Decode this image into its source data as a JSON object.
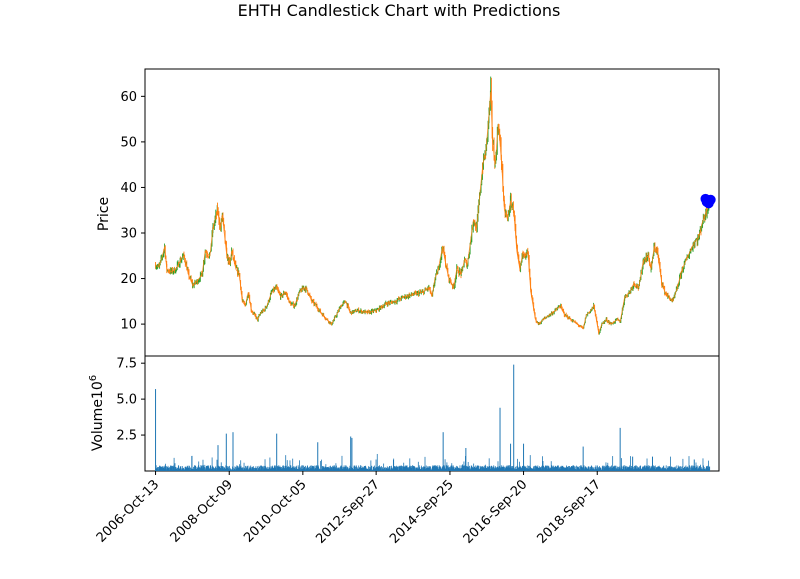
{
  "chart_data": {
    "type": "candlestick",
    "title": "EHTH Candlestick Chart with Predictions",
    "price_panel": {
      "ylabel": "Price",
      "ylim": [
        3,
        66
      ],
      "yticks": [
        10,
        20,
        30,
        40,
        50,
        60
      ],
      "colors": {
        "up": "#2ca02c",
        "down": "#ff7f0e",
        "prediction": "#0000ff"
      },
      "series_close": [
        [
          "2006-10-13",
          23
        ],
        [
          "2006-11-15",
          22.5
        ],
        [
          "2006-12-20",
          25
        ],
        [
          "2007-01-10",
          27
        ],
        [
          "2007-02-01",
          22
        ],
        [
          "2007-03-15",
          21.5
        ],
        [
          "2007-05-01",
          22
        ],
        [
          "2007-06-15",
          24
        ],
        [
          "2007-07-20",
          25
        ],
        [
          "2007-09-01",
          21
        ],
        [
          "2007-10-15",
          18.5
        ],
        [
          "2007-12-01",
          19.5
        ],
        [
          "2008-01-15",
          21
        ],
        [
          "2008-02-15",
          26
        ],
        [
          "2008-04-01",
          25
        ],
        [
          "2008-05-01",
          31
        ],
        [
          "2008-06-15",
          35
        ],
        [
          "2008-07-15",
          31
        ],
        [
          "2008-08-01",
          34
        ],
        [
          "2008-09-15",
          25
        ],
        [
          "2008-10-15",
          23
        ],
        [
          "2008-11-01",
          26
        ],
        [
          "2008-12-15",
          22
        ],
        [
          "2009-01-15",
          21
        ],
        [
          "2009-02-15",
          15
        ],
        [
          "2009-03-15",
          14
        ],
        [
          "2009-04-15",
          17
        ],
        [
          "2009-05-15",
          13
        ],
        [
          "2009-06-15",
          12
        ],
        [
          "2009-07-15",
          11
        ],
        [
          "2009-08-15",
          12.5
        ],
        [
          "2009-09-15",
          13
        ],
        [
          "2009-10-15",
          14
        ],
        [
          "2009-12-01",
          17
        ],
        [
          "2010-01-15",
          18
        ],
        [
          "2010-03-01",
          16
        ],
        [
          "2010-04-15",
          17
        ],
        [
          "2010-06-01",
          14.5
        ],
        [
          "2010-07-15",
          14
        ],
        [
          "2010-09-01",
          17
        ],
        [
          "2010-10-15",
          18
        ],
        [
          "2010-11-15",
          17.5
        ],
        [
          "2011-01-01",
          15
        ],
        [
          "2011-02-15",
          14
        ],
        [
          "2011-04-01",
          12.5
        ],
        [
          "2011-06-01",
          11
        ],
        [
          "2011-07-15",
          10
        ],
        [
          "2011-09-01",
          12
        ],
        [
          "2011-10-15",
          14
        ],
        [
          "2011-12-01",
          15
        ],
        [
          "2012-01-15",
          12.5
        ],
        [
          "2012-04-01",
          13
        ],
        [
          "2012-07-01",
          12.5
        ],
        [
          "2012-10-01",
          13
        ],
        [
          "2013-01-01",
          14.5
        ],
        [
          "2013-04-01",
          15
        ],
        [
          "2013-07-01",
          16
        ],
        [
          "2013-10-01",
          16.5
        ],
        [
          "2014-01-01",
          17
        ],
        [
          "2014-03-01",
          18
        ],
        [
          "2014-04-01",
          16
        ],
        [
          "2014-05-01",
          20
        ],
        [
          "2014-06-01",
          22
        ],
        [
          "2014-07-15",
          27
        ],
        [
          "2014-08-15",
          23
        ],
        [
          "2014-09-15",
          20
        ],
        [
          "2014-11-01",
          18
        ],
        [
          "2014-12-01",
          22
        ],
        [
          "2015-01-15",
          21
        ],
        [
          "2015-02-15",
          24
        ],
        [
          "2015-03-15",
          23
        ],
        [
          "2015-04-15",
          28
        ],
        [
          "2015-05-15",
          33
        ],
        [
          "2015-06-15",
          31
        ],
        [
          "2015-07-15",
          38
        ],
        [
          "2015-08-15",
          45
        ],
        [
          "2015-09-15",
          48
        ],
        [
          "2015-10-15",
          56
        ],
        [
          "2015-11-01",
          61
        ],
        [
          "2015-11-20",
          50
        ],
        [
          "2015-12-15",
          45
        ],
        [
          "2016-01-15",
          54
        ],
        [
          "2016-02-15",
          46
        ],
        [
          "2016-03-15",
          35
        ],
        [
          "2016-04-15",
          33
        ],
        [
          "2016-05-15",
          37
        ],
        [
          "2016-06-15",
          35
        ],
        [
          "2016-07-15",
          26
        ],
        [
          "2016-08-15",
          22
        ],
        [
          "2016-09-15",
          26
        ],
        [
          "2016-10-15",
          25
        ],
        [
          "2016-11-01",
          26
        ],
        [
          "2016-12-01",
          17
        ],
        [
          "2017-01-15",
          11
        ],
        [
          "2017-02-15",
          10
        ],
        [
          "2017-04-01",
          11
        ],
        [
          "2017-06-01",
          12
        ],
        [
          "2017-08-01",
          13
        ],
        [
          "2017-09-15",
          14
        ],
        [
          "2017-11-01",
          12
        ],
        [
          "2018-01-01",
          11
        ],
        [
          "2018-03-01",
          10
        ],
        [
          "2018-05-01",
          9
        ],
        [
          "2018-06-01",
          12
        ],
        [
          "2018-07-15",
          13
        ],
        [
          "2018-08-15",
          14
        ],
        [
          "2018-10-01",
          8
        ],
        [
          "2018-11-01",
          10
        ],
        [
          "2018-12-15",
          11
        ],
        [
          "2019-02-01",
          10
        ],
        [
          "2019-04-01",
          11
        ],
        [
          "2019-05-01",
          10.5
        ],
        [
          "2019-06-15",
          16
        ],
        [
          "2019-08-01",
          17
        ],
        [
          "2019-09-15",
          19
        ],
        [
          "2019-11-01",
          18
        ],
        [
          "2019-12-15",
          24
        ],
        [
          "2020-02-01",
          25
        ],
        [
          "2020-03-01",
          22
        ],
        [
          "2020-04-01",
          27
        ],
        [
          "2020-05-01",
          26
        ],
        [
          "2020-06-15",
          19
        ],
        [
          "2020-07-15",
          17
        ],
        [
          "2020-08-15",
          16
        ],
        [
          "2020-10-01",
          15
        ],
        [
          "2020-11-15",
          18
        ],
        [
          "2021-01-01",
          22
        ],
        [
          "2021-03-01",
          25
        ],
        [
          "2021-05-01",
          28
        ],
        [
          "2021-06-15",
          29
        ],
        [
          "2021-07-15",
          32
        ],
        [
          "2021-08-15",
          34
        ],
        [
          "2021-09-15",
          36
        ],
        [
          "2021-10-01",
          37
        ]
      ],
      "predictions": [
        [
          "2021-08-20",
          37.5
        ],
        [
          "2021-09-01",
          36.8
        ],
        [
          "2021-09-10",
          37.2
        ],
        [
          "2021-09-20",
          36.5
        ],
        [
          "2021-10-01",
          37.0
        ],
        [
          "2021-10-10",
          37.3
        ]
      ]
    },
    "volume_panel": {
      "ylabel": "Volume",
      "scale_label": "10",
      "scale_exp": "6",
      "ylim": [
        0,
        8
      ],
      "yticks": [
        "2.5",
        "5.0",
        "7.5"
      ],
      "ytick_values": [
        2.5,
        5.0,
        7.5
      ],
      "color": "#1f77b4",
      "spikes": [
        [
          "2006-10-13",
          5.7
        ],
        [
          "2008-06-20",
          1.8
        ],
        [
          "2008-09-10",
          2.6
        ],
        [
          "2008-11-15",
          2.7
        ],
        [
          "2010-01-20",
          2.6
        ],
        [
          "2011-03-01",
          2.0
        ],
        [
          "2012-01-20",
          2.4
        ],
        [
          "2012-02-01",
          2.3
        ],
        [
          "2014-07-20",
          2.7
        ],
        [
          "2015-03-01",
          1.6
        ],
        [
          "2016-02-01",
          4.4
        ],
        [
          "2016-05-15",
          1.9
        ],
        [
          "2016-06-15",
          7.4
        ],
        [
          "2016-09-20",
          1.9
        ],
        [
          "2018-05-01",
          1.7
        ],
        [
          "2019-05-01",
          3.0
        ],
        [
          "2019-09-01",
          1.0
        ],
        [
          "2020-03-15",
          1.0
        ],
        [
          "2021-05-01",
          0.8
        ]
      ]
    },
    "xaxis": {
      "range": [
        "2006-07-01",
        "2021-12-31"
      ],
      "ticks": [
        "2006-Oct-13",
        "2008-Oct-09",
        "2010-Oct-05",
        "2012-Sep-27",
        "2014-Sep-25",
        "2016-Sep-20",
        "2018-Sep-17"
      ],
      "tick_dates": [
        "2006-10-13",
        "2008-10-09",
        "2010-10-05",
        "2012-09-27",
        "2014-09-25",
        "2016-09-20",
        "2018-09-17"
      ]
    }
  }
}
